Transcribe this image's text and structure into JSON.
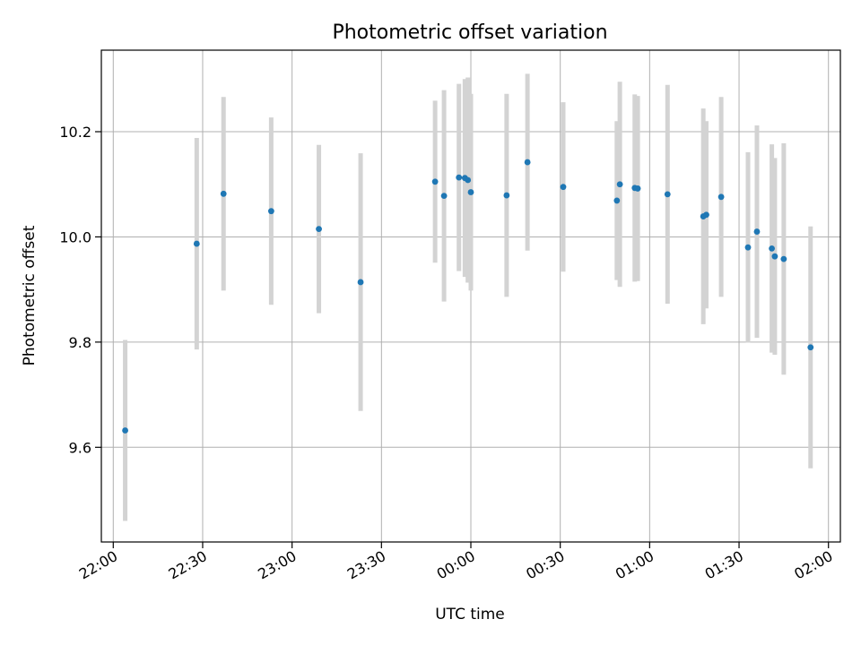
{
  "chart_data": {
    "type": "scatter",
    "title": "Photometric offset variation",
    "xlabel": "UTC time",
    "ylabel": "Photometric offset",
    "x_tick_labels": [
      "22:00",
      "22:30",
      "23:00",
      "23:30",
      "00:00",
      "00:30",
      "01:00",
      "01:30",
      "02:00"
    ],
    "x_tick_times": [
      "22:00",
      "22:30",
      "23:00",
      "23:30",
      "24:00",
      "24:30",
      "25:00",
      "25:30",
      "26:00"
    ],
    "y_ticks": [
      9.6,
      9.8,
      10.0,
      10.2
    ],
    "y_tick_labels": [
      "9.6",
      "9.8",
      "10.0",
      "10.2"
    ],
    "xlim": [
      "21:56",
      "26:04"
    ],
    "ylim": [
      9.42,
      10.355
    ],
    "grid": true,
    "colors": {
      "point": "#1f77b4",
      "errorbar": "#d3d3d3",
      "grid": "#b0b0b0"
    },
    "points": [
      {
        "time": "22:04",
        "y": 9.632,
        "err": 0.172
      },
      {
        "time": "22:28",
        "y": 9.987,
        "err": 0.201
      },
      {
        "time": "22:37",
        "y": 10.082,
        "err": 0.184
      },
      {
        "time": "22:53",
        "y": 10.049,
        "err": 0.178
      },
      {
        "time": "23:09",
        "y": 10.015,
        "err": 0.16
      },
      {
        "time": "23:23",
        "y": 9.914,
        "err": 0.245
      },
      {
        "time": "23:48",
        "y": 10.105,
        "err": 0.154
      },
      {
        "time": "23:51",
        "y": 10.078,
        "err": 0.201
      },
      {
        "time": "23:56",
        "y": 10.113,
        "err": 0.178
      },
      {
        "time": "23:58",
        "y": 10.112,
        "err": 0.188
      },
      {
        "time": "23:59",
        "y": 10.108,
        "err": 0.195
      },
      {
        "time": "24:00",
        "y": 10.085,
        "err": 0.187
      },
      {
        "time": "24:12",
        "y": 10.079,
        "err": 0.193
      },
      {
        "time": "24:19",
        "y": 10.142,
        "err": 0.168
      },
      {
        "time": "24:31",
        "y": 10.095,
        "err": 0.161
      },
      {
        "time": "24:49",
        "y": 10.069,
        "err": 0.151
      },
      {
        "time": "24:50",
        "y": 10.1,
        "err": 0.195
      },
      {
        "time": "24:55",
        "y": 10.093,
        "err": 0.178
      },
      {
        "time": "24:56",
        "y": 10.092,
        "err": 0.176
      },
      {
        "time": "25:06",
        "y": 10.081,
        "err": 0.208
      },
      {
        "time": "25:18",
        "y": 10.039,
        "err": 0.205
      },
      {
        "time": "25:19",
        "y": 10.042,
        "err": 0.178
      },
      {
        "time": "25:24",
        "y": 10.076,
        "err": 0.19
      },
      {
        "time": "25:33",
        "y": 9.98,
        "err": 0.181
      },
      {
        "time": "25:36",
        "y": 10.01,
        "err": 0.202
      },
      {
        "time": "25:41",
        "y": 9.978,
        "err": 0.198
      },
      {
        "time": "25:42",
        "y": 9.963,
        "err": 0.187
      },
      {
        "time": "25:45",
        "y": 9.958,
        "err": 0.22
      },
      {
        "time": "25:54",
        "y": 9.79,
        "err": 0.23
      }
    ]
  }
}
